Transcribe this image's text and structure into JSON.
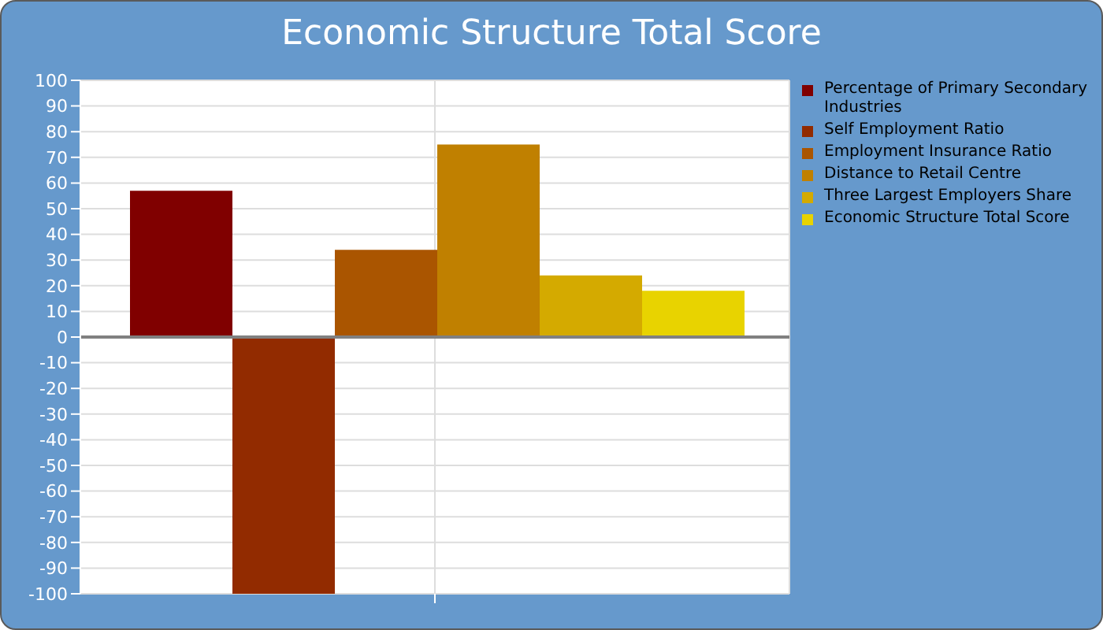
{
  "chart_data": {
    "type": "bar",
    "title": "Economic Structure Total Score",
    "categories": [
      null
    ],
    "series": [
      {
        "name": "Percentage of Primary Secondary Industries",
        "color": "#800000",
        "values": [
          57
        ]
      },
      {
        "name": "Self Employment Ratio",
        "color": "#922b00",
        "values": [
          -100
        ]
      },
      {
        "name": "Employment Insurance Ratio",
        "color": "#aa5500",
        "values": [
          34
        ]
      },
      {
        "name": "Distance to Retail Centre",
        "color": "#c08000",
        "values": [
          75
        ]
      },
      {
        "name": "Three Largest Employers Share",
        "color": "#d4aa00",
        "values": [
          24
        ]
      },
      {
        "name": "Economic Structure Total Score",
        "color": "#e8d300",
        "values": [
          18
        ]
      }
    ],
    "ylim": [
      -100,
      100
    ],
    "yticks": [
      -100,
      -90,
      -80,
      -70,
      -60,
      -50,
      -40,
      -30,
      -20,
      -10,
      0,
      10,
      20,
      30,
      40,
      50,
      60,
      70,
      80,
      90,
      100
    ],
    "ref_lines": [
      {
        "axis": "y",
        "value": 0,
        "color": "#808080"
      }
    ],
    "grid": true,
    "legend": "right"
  }
}
